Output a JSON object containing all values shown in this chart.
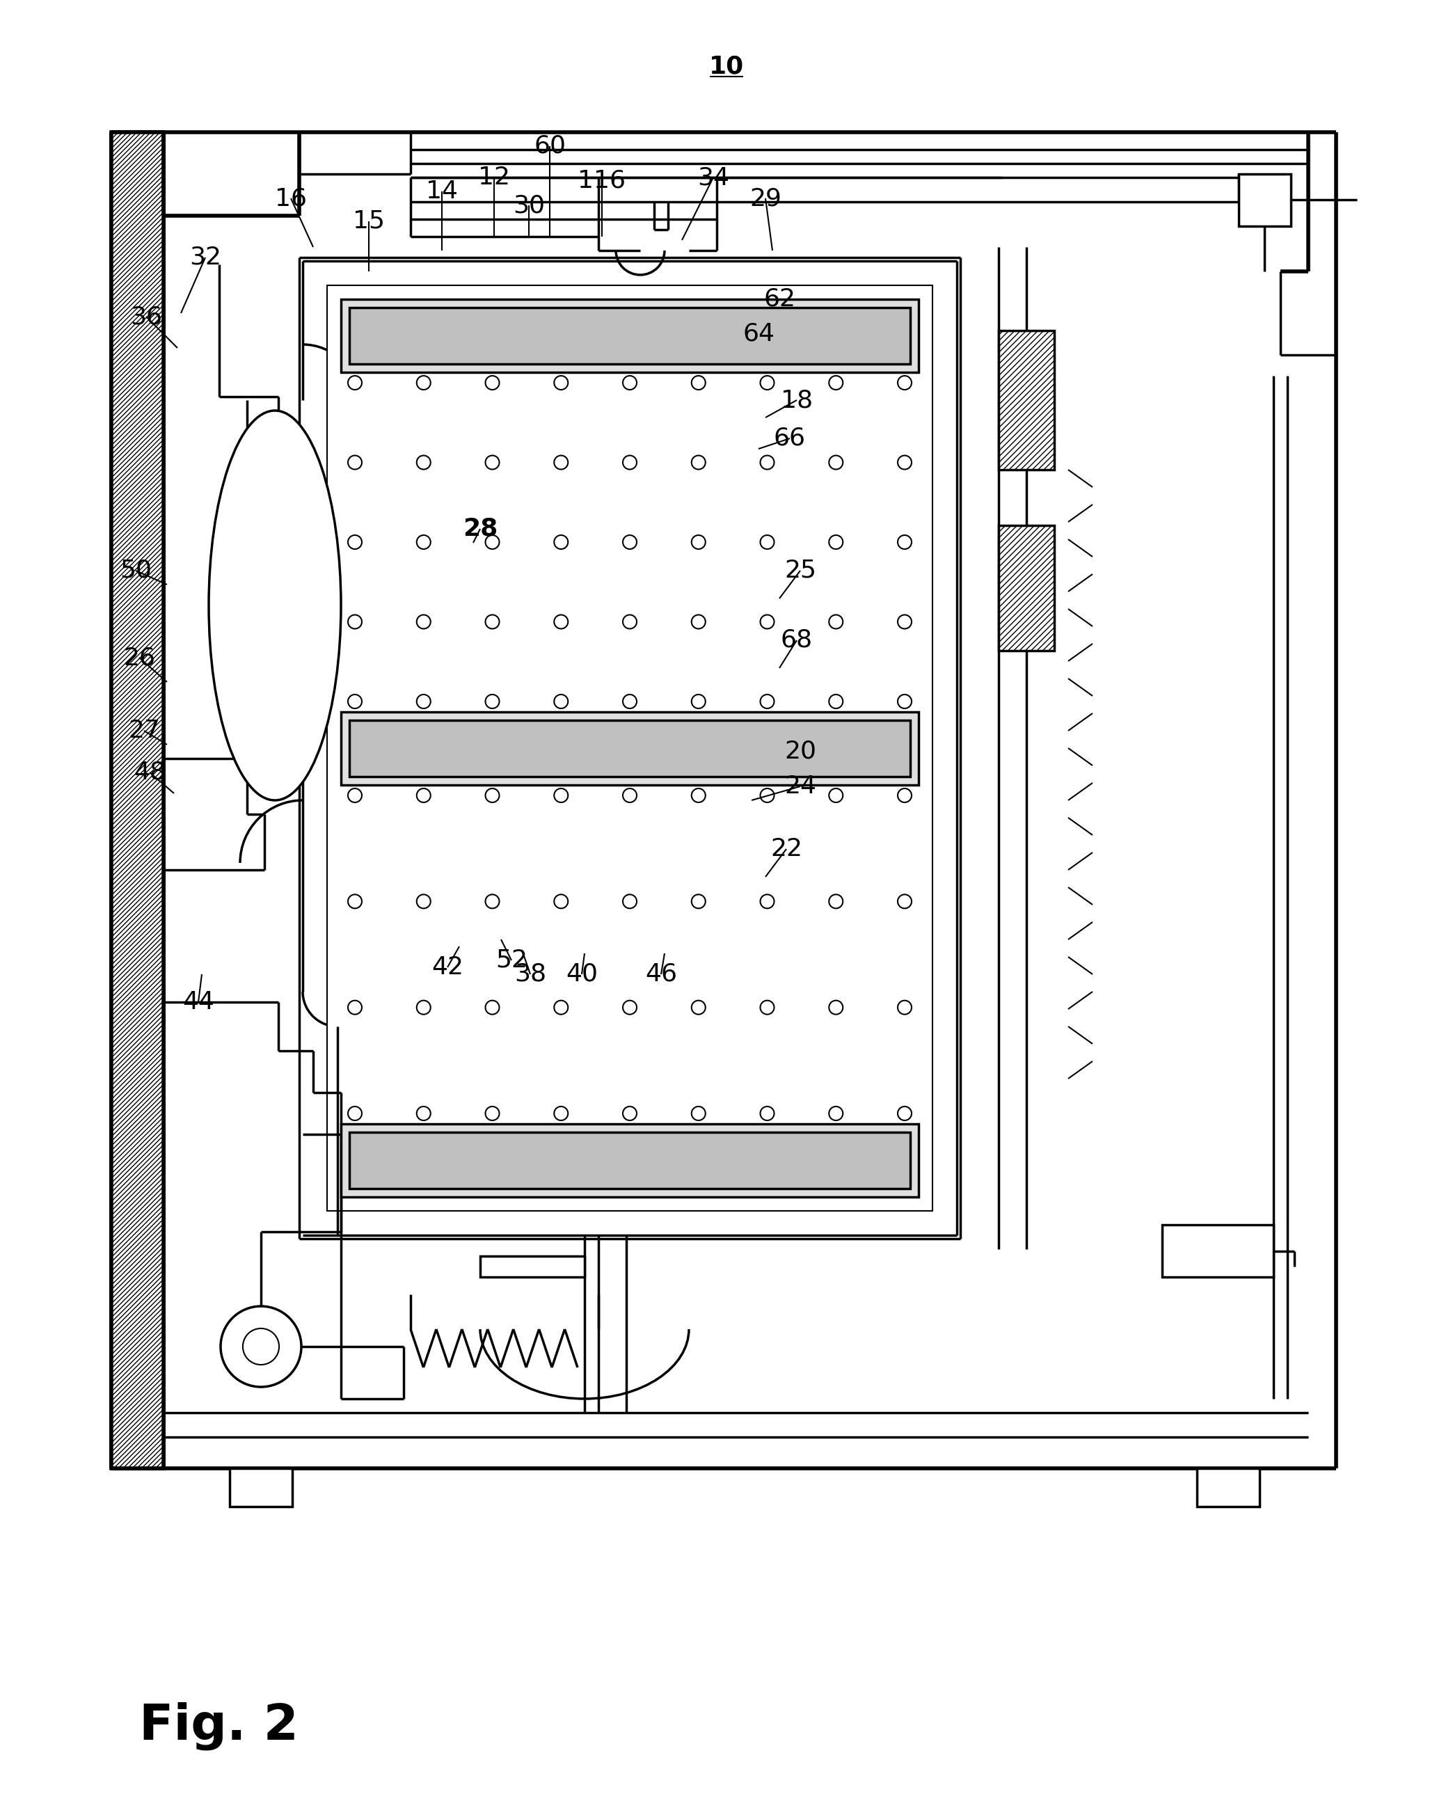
{
  "bg_color": "#ffffff",
  "line_color": "#000000",
  "fig_label": "Fig. 2",
  "ref_number": "10",
  "labels": [
    [
      "10",
      1044,
      95
    ],
    [
      "32",
      295,
      370
    ],
    [
      "16",
      418,
      285
    ],
    [
      "15",
      530,
      318
    ],
    [
      "14",
      635,
      275
    ],
    [
      "12",
      710,
      255
    ],
    [
      "60",
      790,
      210
    ],
    [
      "30",
      760,
      295
    ],
    [
      "116",
      865,
      260
    ],
    [
      "34",
      1025,
      255
    ],
    [
      "29",
      1100,
      285
    ],
    [
      "36",
      210,
      455
    ],
    [
      "62",
      1120,
      430
    ],
    [
      "64",
      1090,
      480
    ],
    [
      "18",
      1145,
      575
    ],
    [
      "66",
      1135,
      630
    ],
    [
      "28",
      690,
      760
    ],
    [
      "25",
      1150,
      820
    ],
    [
      "50",
      195,
      820
    ],
    [
      "68",
      1145,
      920
    ],
    [
      "26",
      200,
      945
    ],
    [
      "20",
      1150,
      1080
    ],
    [
      "27",
      207,
      1050
    ],
    [
      "24",
      1150,
      1130
    ],
    [
      "48",
      215,
      1110
    ],
    [
      "22",
      1130,
      1220
    ],
    [
      "52",
      735,
      1380
    ],
    [
      "42",
      643,
      1390
    ],
    [
      "38",
      762,
      1400
    ],
    [
      "40",
      836,
      1400
    ],
    [
      "46",
      950,
      1400
    ],
    [
      "44",
      285,
      1440
    ]
  ],
  "lw": 2.5,
  "lw_thin": 1.5,
  "lw_thick": 4.0
}
